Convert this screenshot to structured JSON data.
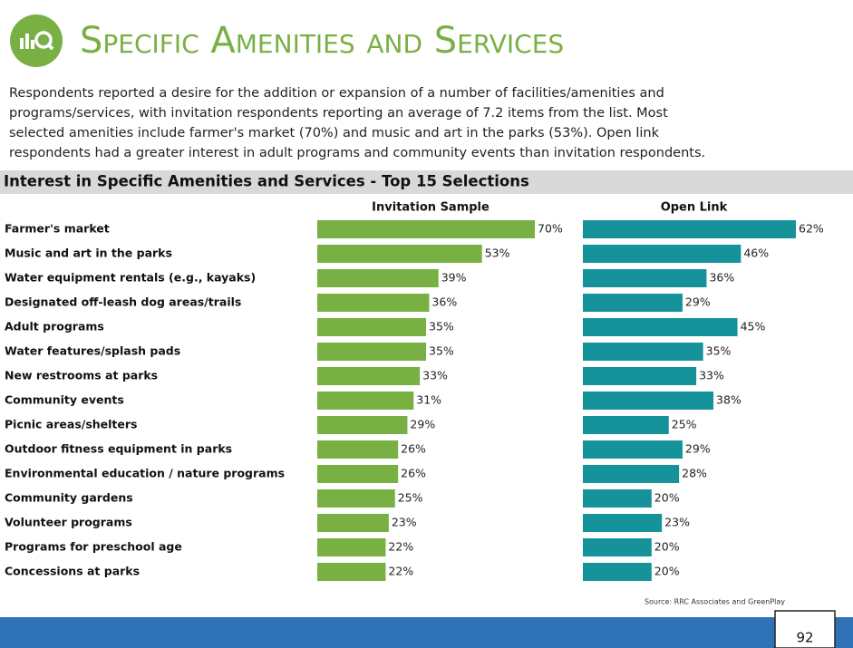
{
  "header": {
    "title": "Specific Amenities and Services"
  },
  "body": {
    "lines": [
      "Respondents reported a desire for the addition or expansion of a number of facilities/amenities and",
      "programs/services, with invitation respondents reporting an average of 7.2 items from the list.  Most",
      "selected amenities include farmer's market (70%) and music and art in the parks (53%).  Open link",
      "respondents had a greater interest in adult programs and community events than invitation respondents."
    ]
  },
  "chart_data": {
    "type": "bar",
    "orientation": "horizontal",
    "title": "Interest in Specific Amenities and Services - Top 15 Selections",
    "categories": [
      "Farmer's market",
      "Music and art in the parks",
      "Water equipment rentals (e.g., kayaks)",
      "Designated off-leash dog areas/trails",
      "Adult programs",
      "Water features/splash pads",
      "New restrooms at parks",
      "Community events",
      "Picnic areas/shelters",
      "Outdoor fitness equipment in parks",
      "Environmental education / nature programs",
      "Community gardens",
      "Volunteer programs",
      "Programs for preschool age",
      "Concessions at parks"
    ],
    "series": [
      {
        "name": "Invitation Sample",
        "color": "#78b043",
        "values": [
          70,
          53,
          39,
          36,
          35,
          35,
          33,
          31,
          29,
          26,
          26,
          25,
          23,
          22,
          22
        ],
        "value_labels": [
          "70%",
          "53%",
          "39%",
          "36%",
          "35%",
          "35%",
          "33%",
          "31%",
          "29%",
          "26%",
          "26%",
          "25%",
          "23%",
          "22%",
          "22%"
        ]
      },
      {
        "name": "Open Link",
        "color": "#16929a",
        "values": [
          62,
          46,
          36,
          29,
          45,
          35,
          33,
          38,
          25,
          29,
          28,
          20,
          23,
          20,
          20
        ],
        "value_labels": [
          "62%",
          "46%",
          "36%",
          "29%",
          "45%",
          "35%",
          "33%",
          "38%",
          "25%",
          "29%",
          "28%",
          "20%",
          "23%",
          "20%",
          "20%"
        ]
      }
    ]
  },
  "footer": {
    "source": "Source: RRC Associates and GreenPlay",
    "page": "92"
  }
}
